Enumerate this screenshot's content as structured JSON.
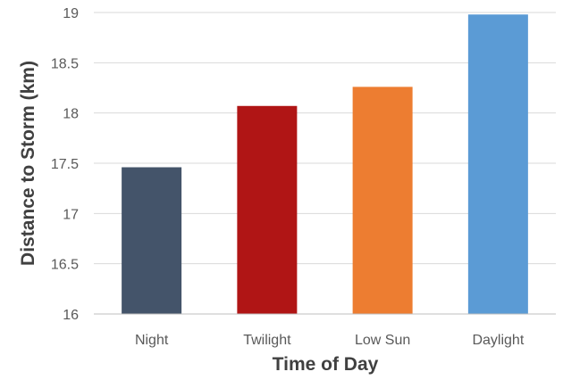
{
  "chart_data": {
    "type": "bar",
    "categories": [
      "Night",
      "Twilight",
      "Low Sun",
      "Daylight"
    ],
    "values": [
      17.46,
      18.07,
      18.26,
      18.98
    ],
    "colors": [
      "#44546a",
      "#b01515",
      "#ed7d31",
      "#5b9bd5"
    ],
    "xlabel": "Time of Day",
    "ylabel": "Distance to Storm (km)",
    "ylim": [
      16,
      19
    ],
    "yticks": [
      "16",
      "16.5",
      "17",
      "17.5",
      "18",
      "18.5",
      "19"
    ],
    "grid": true,
    "legend": false
  }
}
